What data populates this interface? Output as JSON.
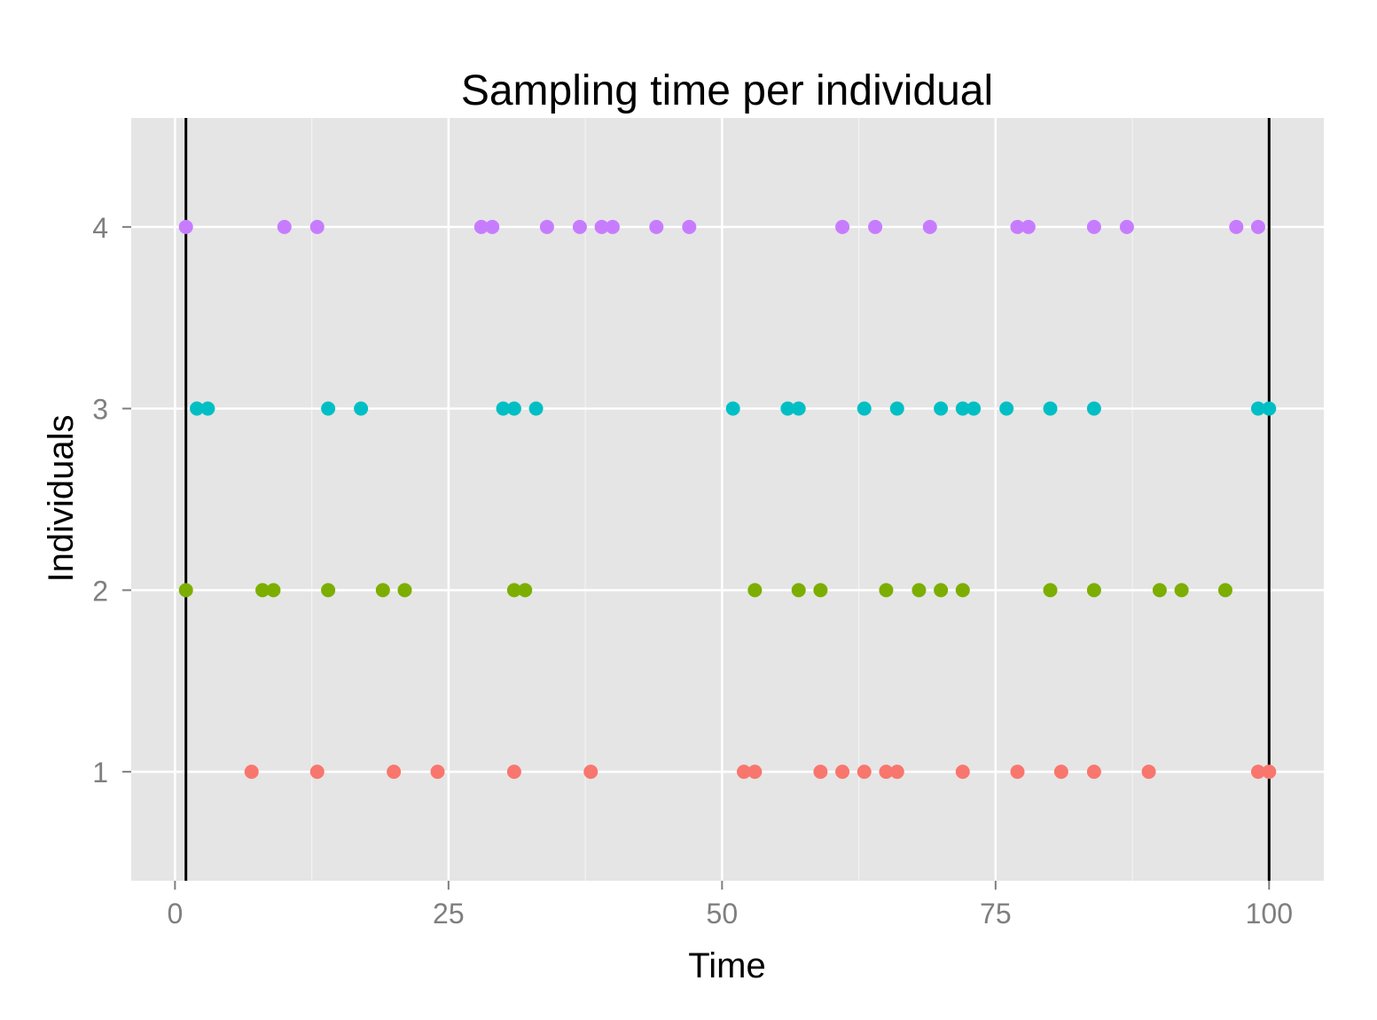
{
  "chart_data": {
    "type": "scatter",
    "title": "Sampling time per individual",
    "xlabel": "Time",
    "ylabel": "Individuals",
    "xlim": [
      -4,
      105
    ],
    "ylim": [
      0.4,
      4.6
    ],
    "x_ticks": [
      0,
      25,
      50,
      75,
      100
    ],
    "x_tick_labels": [
      "0",
      "25",
      "50",
      "75",
      "100"
    ],
    "y_ticks": [
      1,
      2,
      3,
      4
    ],
    "y_tick_labels": [
      "1",
      "2",
      "3",
      "4"
    ],
    "grid": true,
    "legend": "none",
    "background_color": "#e5e5e5",
    "vertical_reference_lines": [
      1,
      100
    ],
    "series": [
      {
        "individual": 1,
        "color": "#f8766d",
        "x": [
          7,
          13,
          20,
          24,
          31,
          38,
          52,
          53,
          59,
          61,
          63,
          65,
          66,
          72,
          77,
          81,
          84,
          89,
          99,
          100
        ]
      },
      {
        "individual": 2,
        "color": "#7cae00",
        "x": [
          1,
          8,
          9,
          14,
          19,
          21,
          31,
          32,
          53,
          57,
          59,
          65,
          68,
          70,
          72,
          80,
          84,
          90,
          92,
          96
        ]
      },
      {
        "individual": 3,
        "color": "#00bfc4",
        "x": [
          2,
          3,
          14,
          17,
          30,
          31,
          33,
          51,
          56,
          57,
          63,
          66,
          70,
          72,
          73,
          76,
          80,
          84,
          99,
          100
        ]
      },
      {
        "individual": 4,
        "color": "#c77cff",
        "x": [
          1,
          10,
          13,
          28,
          29,
          34,
          37,
          39,
          40,
          44,
          47,
          61,
          64,
          69,
          77,
          78,
          84,
          87,
          97,
          99
        ]
      }
    ]
  }
}
